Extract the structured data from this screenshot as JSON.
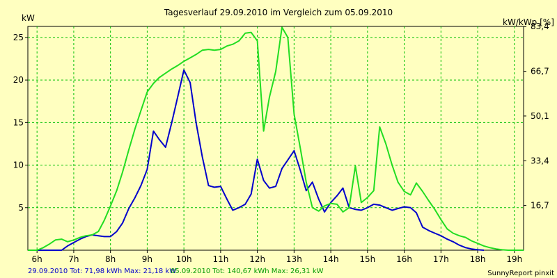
{
  "chart_data": {
    "type": "line",
    "title": "Tagesverlauf 29.09.2010 im Vergleich zum 05.09.2010",
    "ylabel_left": "kW",
    "ylabel_right": "kW/kWp [%]",
    "xlim": [
      5.75,
      19.25
    ],
    "ylim": [
      0,
      26.3
    ],
    "x_ticks": [
      {
        "value": 6,
        "label": "6h"
      },
      {
        "value": 7,
        "label": "7h"
      },
      {
        "value": 8,
        "label": "8h"
      },
      {
        "value": 9,
        "label": "9h"
      },
      {
        "value": 10,
        "label": "10h"
      },
      {
        "value": 11,
        "label": "11h"
      },
      {
        "value": 12,
        "label": "12h"
      },
      {
        "value": 13,
        "label": "13h"
      },
      {
        "value": 14,
        "label": "14h"
      },
      {
        "value": 15,
        "label": "15h"
      },
      {
        "value": 16,
        "label": "16h"
      },
      {
        "value": 17,
        "label": "17h"
      },
      {
        "value": 18,
        "label": "18h"
      },
      {
        "value": 19,
        "label": "19h"
      }
    ],
    "y_ticks_left": [
      {
        "value": 5,
        "label": "5"
      },
      {
        "value": 10,
        "label": "10"
      },
      {
        "value": 15,
        "label": "15"
      },
      {
        "value": 20,
        "label": "20"
      },
      {
        "value": 25,
        "label": "25"
      }
    ],
    "y_ticks_right": [
      {
        "value": 5.26,
        "label": "16,7"
      },
      {
        "value": 10.51,
        "label": "33,4"
      },
      {
        "value": 15.77,
        "label": "50,1"
      },
      {
        "value": 21.02,
        "label": "66,7"
      },
      {
        "value": 26.28,
        "label": "83,4"
      }
    ],
    "grid": true,
    "series": [
      {
        "name": "29.09.2010 Tot: 71,98 kWh Max: 21,18 kW",
        "color": "#0000cc",
        "x": [
          5.75,
          6.67,
          6.83,
          7.0,
          7.17,
          7.33,
          7.5,
          7.67,
          7.83,
          8.0,
          8.17,
          8.33,
          8.5,
          8.67,
          8.83,
          9.0,
          9.17,
          9.33,
          9.5,
          9.67,
          9.83,
          10.0,
          10.17,
          10.33,
          10.5,
          10.67,
          10.83,
          11.0,
          11.17,
          11.33,
          11.5,
          11.67,
          11.83,
          12.0,
          12.17,
          12.33,
          12.5,
          12.67,
          12.83,
          13.0,
          13.17,
          13.33,
          13.5,
          13.67,
          13.83,
          14.0,
          14.17,
          14.33,
          14.5,
          14.67,
          14.83,
          15.0,
          15.17,
          15.33,
          15.5,
          15.67,
          15.83,
          16.0,
          16.17,
          16.33,
          16.5,
          16.67,
          16.83,
          17.0,
          17.17,
          17.33,
          17.5,
          17.67,
          17.83,
          18.0,
          18.17
        ],
        "values": [
          0,
          0,
          0.5,
          0.9,
          1.3,
          1.6,
          1.8,
          1.7,
          1.6,
          1.6,
          2.2,
          3.2,
          4.9,
          6.2,
          7.6,
          9.5,
          14.0,
          13.0,
          12.1,
          15.0,
          18.0,
          21.18,
          19.7,
          15.0,
          11.0,
          7.6,
          7.4,
          7.5,
          6.0,
          4.7,
          5.0,
          5.4,
          6.6,
          10.7,
          8.2,
          7.3,
          7.5,
          9.6,
          10.6,
          11.7,
          9.4,
          7.0,
          8.0,
          6.0,
          4.5,
          5.6,
          6.4,
          7.3,
          5.0,
          4.8,
          4.7,
          5.0,
          5.4,
          5.3,
          5.0,
          4.7,
          4.9,
          5.1,
          5.0,
          4.4,
          2.7,
          2.3,
          2.0,
          1.7,
          1.3,
          1.0,
          0.6,
          0.3,
          0.15,
          0.05,
          0
        ]
      },
      {
        "name": "05.09.2010 Tot: 140,67 kWh Max: 26,31 kW",
        "color": "#22dd22",
        "x": [
          5.75,
          6.0,
          6.17,
          6.33,
          6.5,
          6.67,
          6.83,
          7.0,
          7.17,
          7.33,
          7.5,
          7.67,
          7.83,
          8.0,
          8.17,
          8.33,
          8.5,
          8.67,
          8.83,
          9.0,
          9.17,
          9.33,
          9.5,
          9.67,
          9.83,
          10.0,
          10.17,
          10.33,
          10.5,
          10.67,
          10.83,
          11.0,
          11.17,
          11.33,
          11.5,
          11.67,
          11.83,
          12.0,
          12.17,
          12.33,
          12.5,
          12.67,
          12.83,
          13.0,
          13.17,
          13.33,
          13.5,
          13.67,
          13.83,
          14.0,
          14.17,
          14.33,
          14.5,
          14.67,
          14.83,
          15.0,
          15.17,
          15.33,
          15.5,
          15.67,
          15.83,
          16.0,
          16.17,
          16.33,
          16.5,
          16.67,
          16.83,
          17.0,
          17.17,
          17.33,
          17.5,
          17.67,
          17.83,
          18.0,
          18.17,
          18.33,
          18.5,
          18.67,
          18.83,
          19.0,
          19.25
        ],
        "values": [
          0,
          0,
          0.3,
          0.7,
          1.2,
          1.3,
          1.0,
          1.2,
          1.5,
          1.7,
          1.8,
          2.2,
          3.5,
          5.2,
          7.0,
          9.2,
          11.8,
          14.3,
          16.4,
          18.6,
          19.6,
          20.3,
          20.8,
          21.3,
          21.7,
          22.2,
          22.6,
          23.0,
          23.5,
          23.6,
          23.5,
          23.6,
          24.0,
          24.2,
          24.6,
          25.5,
          25.6,
          24.6,
          14.0,
          18.0,
          21.0,
          26.2,
          25.0,
          16.0,
          12.0,
          8.0,
          5.0,
          4.6,
          5.2,
          5.5,
          5.4,
          4.5,
          5.0,
          9.9,
          5.6,
          6.2,
          7.0,
          14.5,
          12.5,
          10.0,
          8.0,
          6.9,
          6.5,
          7.9,
          6.9,
          5.8,
          4.8,
          3.6,
          2.5,
          2.0,
          1.7,
          1.5,
          1.1,
          0.8,
          0.5,
          0.3,
          0.15,
          0.05,
          0,
          0,
          0
        ]
      }
    ],
    "footer_right": "SunnyReport pinxit"
  }
}
